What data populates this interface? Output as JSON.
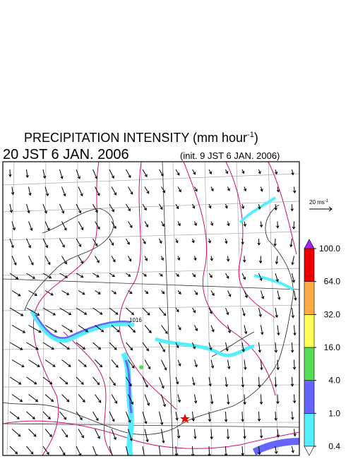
{
  "title": {
    "text": "PRECIPITATION INTENSITY (mm hour",
    "exponent": "-1",
    "close": ")"
  },
  "valid_time": "20 JST 6 JAN. 2006",
  "init_time": "(init. 9 JST 6 JAN. 2006)",
  "wind_scale": {
    "text": "20 ms",
    "exponent": "-1"
  },
  "contour_label": "1016",
  "colorbar": {
    "ticks": [
      {
        "value": 0.4,
        "label": "0.4"
      },
      {
        "value": 1,
        "label": "1.0"
      },
      {
        "value": 4,
        "label": "4.0"
      },
      {
        "value": 16,
        "label": "16.0"
      },
      {
        "value": 32,
        "label": "32.0"
      },
      {
        "value": 64,
        "label": "64.0"
      },
      {
        "value": 100,
        "label": "100.0"
      }
    ],
    "colors": [
      "#55eeff",
      "#6666ff",
      "#55dd55",
      "#ffff55",
      "#ffaa44",
      "#ee0000"
    ],
    "under_color": "#ffffff",
    "over_color": "#aa22ee"
  }
}
